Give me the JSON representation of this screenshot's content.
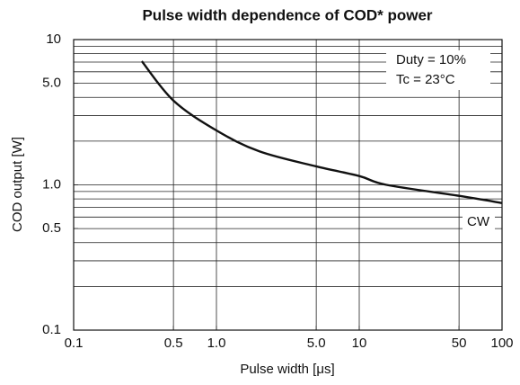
{
  "chart_data": {
    "type": "line",
    "title": "Pulse width dependence of COD* power",
    "xlabel": "Pulse width [μs]",
    "ylabel": "COD output [W]",
    "xscale": "log",
    "yscale": "log",
    "xlim": [
      0.1,
      100
    ],
    "ylim": [
      0.1,
      10
    ],
    "xticks": [
      0.1,
      0.5,
      {
        "value": 1,
        "label": "1.0"
      },
      {
        "value": 5,
        "label": "5.0"
      },
      10,
      50,
      100
    ],
    "yticks": [
      0.1,
      0.5,
      {
        "value": 1,
        "label": "1.0"
      },
      {
        "value": 5,
        "label": "5.0"
      },
      10
    ],
    "ygrid": [
      0.2,
      0.3,
      0.4,
      0.5,
      0.6,
      0.7,
      0.8,
      0.9,
      1,
      2,
      3,
      4,
      5,
      6,
      7,
      8,
      9
    ],
    "xgrid": [
      0.5,
      1,
      5,
      10,
      50
    ],
    "annotations": [
      "Duty = 10%",
      "Tc = 23°C",
      "CW"
    ],
    "series": [
      {
        "color": "#111111",
        "x": [
          0.3,
          0.5,
          1,
          2,
          5,
          10,
          15.5,
          50,
          100
        ],
        "values": [
          7.1,
          3.8,
          2.37,
          1.7,
          1.34,
          1.15,
          1.0,
          0.84,
          0.75
        ]
      }
    ]
  }
}
